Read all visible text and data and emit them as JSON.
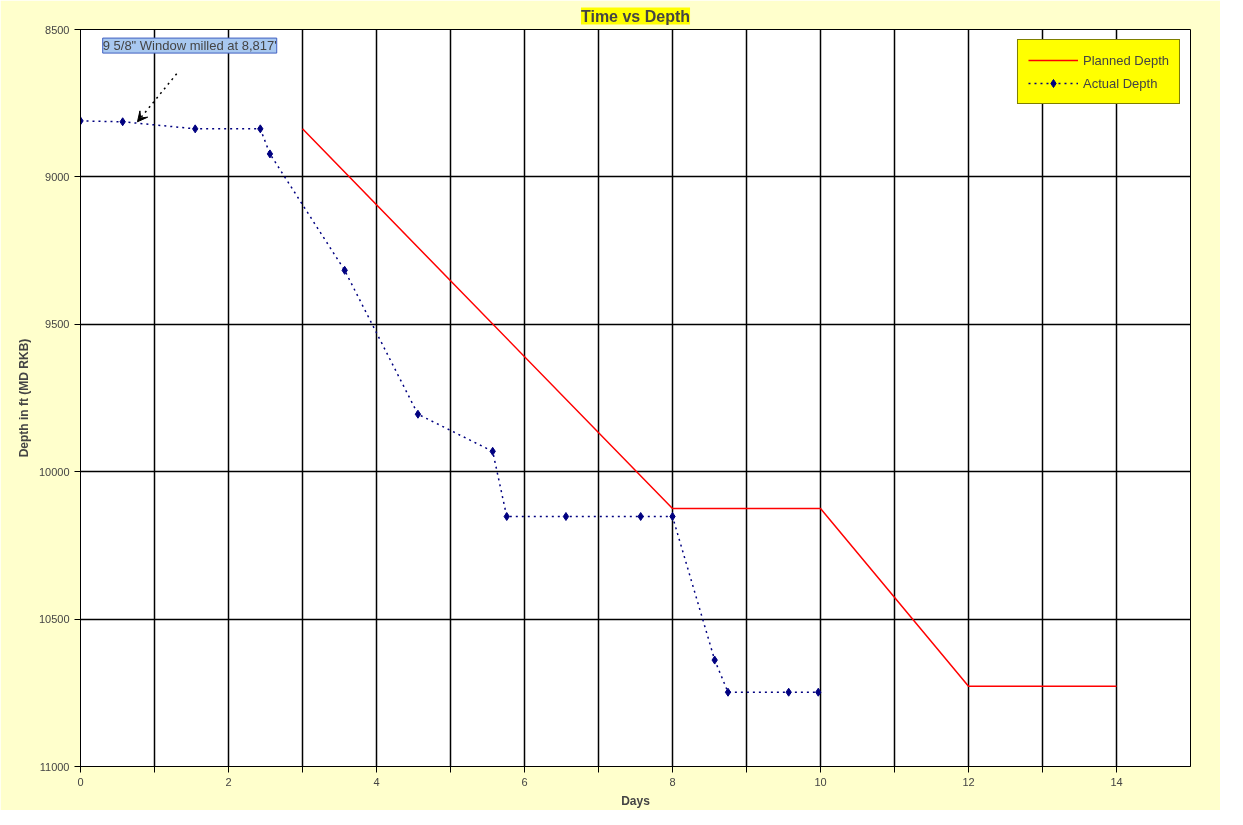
{
  "chart_data": {
    "type": "line",
    "title": "Time vs Depth",
    "xlabel": "Days",
    "ylabel": "Depth in ft (MD RKB)",
    "xlim": [
      0,
      15
    ],
    "xticks": [
      0,
      {
        "value": 1,
        "label": null
      },
      2,
      {
        "value": 3,
        "label": null
      },
      4,
      {
        "value": 5,
        "label": null
      },
      6,
      {
        "value": 7,
        "label": null
      },
      8,
      {
        "value": 9,
        "label": null
      },
      10,
      {
        "value": 11,
        "label": null
      },
      12,
      {
        "value": 13,
        "label": null
      },
      14
    ],
    "ylim": [
      11000,
      8500
    ],
    "yticks": [
      8500,
      9000,
      9500,
      10000,
      10500,
      11000
    ],
    "grid": true,
    "legend": "top right",
    "series": [
      {
        "name": "Planned Depth",
        "color": "#ff0000",
        "marker": "none",
        "line_style": "solid",
        "x": [
          3,
          8,
          10,
          12,
          14
        ],
        "values": [
          8837,
          10125,
          10125,
          10728,
          10728
        ]
      },
      {
        "name": "Actual Depth",
        "color": "#000080",
        "marker": "diamond",
        "line_style": "dotted",
        "x": [
          0,
          0.57,
          1.55,
          2.43,
          2.56,
          3.57,
          4.56,
          5.57,
          5.76,
          6.56,
          7.57,
          8.0,
          8.57,
          8.75,
          9.57,
          9.97
        ],
        "values": [
          8810,
          8813,
          8837,
          8837,
          8922,
          9317,
          9805,
          9931,
          10152,
          10152,
          10152,
          10152,
          10639,
          10748,
          10748,
          10748
        ]
      }
    ],
    "annotations": [
      "9 5/8\" Window milled at 8,817'"
    ]
  }
}
